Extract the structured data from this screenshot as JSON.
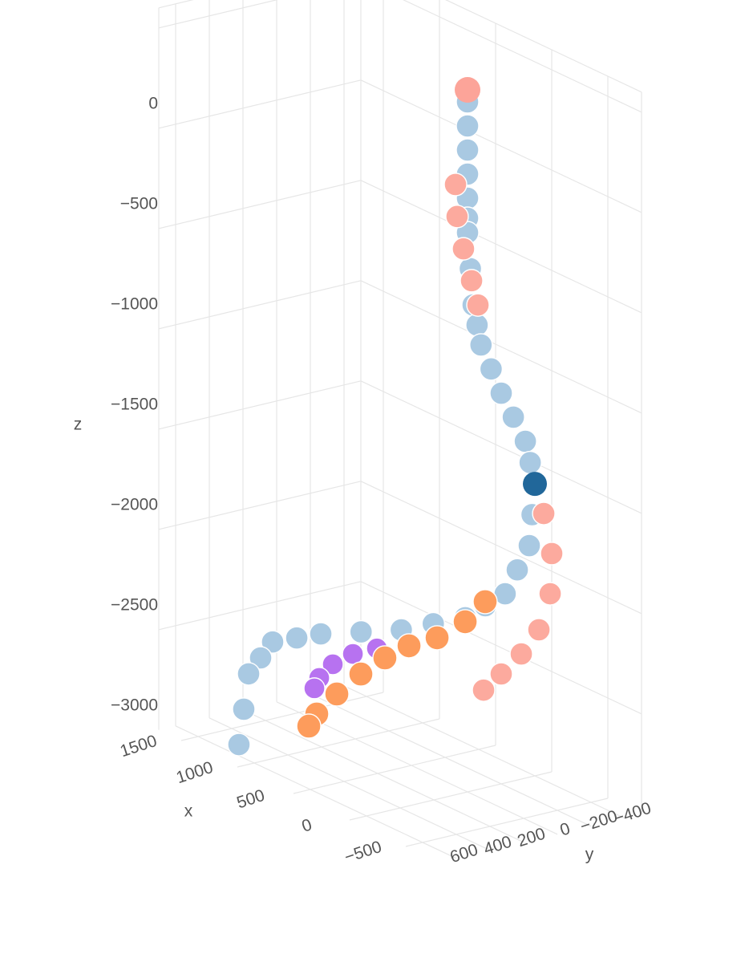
{
  "chart_data": {
    "type": "scatter3d",
    "xaxis_title": "x",
    "yaxis_title": "y",
    "zaxis_title": "z",
    "xlim": [
      -800,
      1700
    ],
    "ylim": [
      -500,
      700
    ],
    "zlim": [
      -3500,
      100
    ],
    "xticks": [
      {
        "value": -500,
        "label": "−500"
      },
      0,
      500,
      1000,
      1500
    ],
    "yticks": [
      {
        "value": -400,
        "label": "−400"
      },
      {
        "value": -200,
        "label": "−200"
      },
      0,
      200,
      400,
      600
    ],
    "zticks": [
      {
        "value": -3000,
        "label": "−3000"
      },
      {
        "value": -2500,
        "label": "−2500"
      },
      {
        "value": -2000,
        "label": "−2000"
      },
      {
        "value": -1500,
        "label": "−1500"
      },
      {
        "value": -1000,
        "label": "−1000"
      },
      {
        "value": -500,
        "label": "−500"
      },
      0
    ],
    "grid": true,
    "series": [
      {
        "color": "#a9c9e2",
        "x": [
          0,
          0,
          0,
          0,
          0,
          0,
          0,
          -25,
          -50,
          -85,
          -120,
          -210,
          -300,
          -408,
          -515,
          -558,
          -600,
          -575,
          -550,
          -443,
          -335,
          -158,
          20,
          305,
          590,
          798,
          1007,
          1146,
          1286,
          1318,
          1350,
          1243,
          1136
        ],
        "y": [
          0,
          0,
          0,
          0,
          0,
          0,
          0,
          0,
          0,
          0,
          0,
          0,
          0,
          0,
          0,
          0,
          0,
          0,
          0,
          0,
          0,
          0,
          0,
          0,
          0,
          100,
          200,
          250,
          300,
          350,
          400,
          500,
          600
        ],
        "z": [
          -60,
          -180,
          -300,
          -420,
          -540,
          -640,
          -712,
          -885,
          -1059,
          -1150,
          -1240,
          -1336,
          -1433,
          -1524,
          -1616,
          -1711,
          -1806,
          -1966,
          -2127,
          -2276,
          -2424,
          -2530,
          -2637,
          -2742,
          -2848,
          -2893,
          -2938,
          -2985,
          -3032,
          -3110,
          -3188,
          -3316,
          -3444
        ]
      },
      {
        "color": "#fcaa9e",
        "x": [
          107,
          93,
          36,
          -36,
          -93,
          -379,
          -450,
          -436,
          -336,
          -179,
          0,
          157
        ],
        "y": [
          0,
          0,
          0,
          0,
          0,
          -200,
          -200,
          -200,
          -200,
          -200,
          -200,
          -200
        ],
        "z": [
          -500,
          -656,
          -802,
          -942,
          -1048,
          -2052,
          -2233,
          -2437,
          -2643,
          -2805,
          -2952,
          -3074
        ]
      },
      {
        "color": "#b772f0",
        "x": [
          657,
          871,
          1050,
          1171,
          1214
        ],
        "y": [
          100,
          100,
          100,
          100,
          100
        ],
        "z": [
          -2938,
          -3022,
          -3121,
          -3221,
          -3284
        ]
      },
      {
        "color": "#fd9c5c",
        "x": [
          -457,
          -279,
          -29,
          221,
          436,
          650,
          864,
          1043,
          1114
        ],
        "y": [
          200,
          200,
          200,
          200,
          200,
          200,
          200,
          200,
          200
        ],
        "z": [
          -2391,
          -2538,
          -2684,
          -2790,
          -2907,
          -3044,
          -3200,
          -3347,
          -3426
        ]
      },
      {
        "color": "#21679a",
        "x": [
          -600
        ],
        "y": [
          0
        ],
        "z": [
          -1806
        ]
      },
      {
        "color": "#fca499",
        "x": [
          0
        ],
        "y": [
          0
        ],
        "z": [
          0
        ]
      }
    ]
  }
}
